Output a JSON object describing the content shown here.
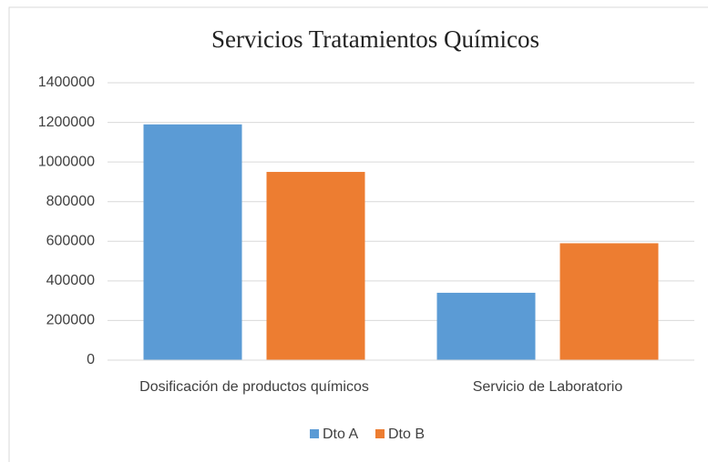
{
  "chart_data": {
    "type": "bar",
    "title": "Servicios  Tratamientos  Químicos",
    "categories": [
      "Dosificación de productos químicos",
      "Servicio de Laboratorio"
    ],
    "series": [
      {
        "name": "Dto A",
        "color": "#5b9bd5",
        "values": [
          1190000,
          340000
        ]
      },
      {
        "name": "Dto B",
        "color": "#ed7d31",
        "values": [
          950000,
          590000
        ]
      }
    ],
    "ylim": [
      0,
      1400000
    ],
    "yticks": [
      0,
      200000,
      400000,
      600000,
      800000,
      1000000,
      1200000,
      1400000
    ],
    "grid": true,
    "legend": "bottom"
  }
}
